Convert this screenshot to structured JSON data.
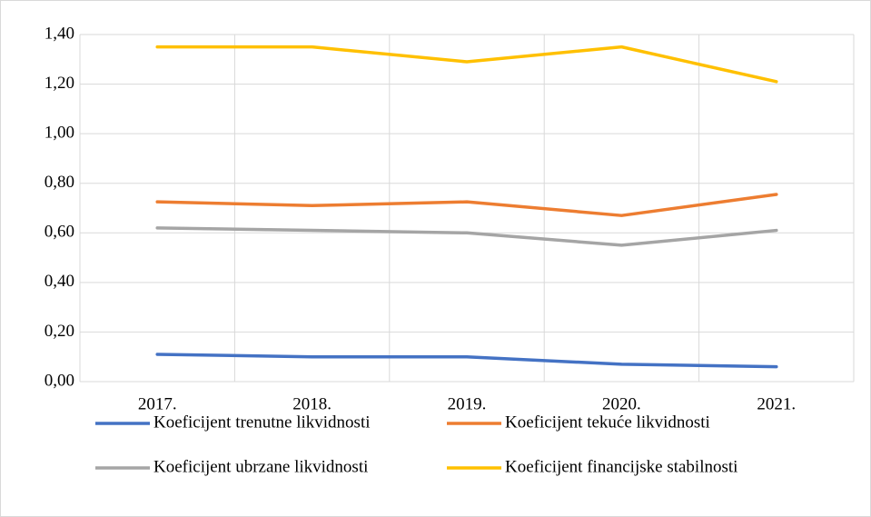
{
  "chart_data": {
    "type": "line",
    "categories": [
      "2017.",
      "2018.",
      "2019.",
      "2020.",
      "2021."
    ],
    "series": [
      {
        "name": "Koeficijent trenutne likvidnosti",
        "color": "#4472c4",
        "values": [
          0.11,
          0.1,
          0.1,
          0.07,
          0.06
        ]
      },
      {
        "name": "Koeficijent tekuće likvidnosti",
        "color": "#ed7d31",
        "values": [
          0.725,
          0.71,
          0.725,
          0.67,
          0.755
        ]
      },
      {
        "name": "Koeficijent ubrzane likvidnosti",
        "color": "#a5a5a5",
        "values": [
          0.62,
          0.61,
          0.6,
          0.55,
          0.61
        ]
      },
      {
        "name": "Koeficijent financijske stabilnosti",
        "color": "#ffc000",
        "values": [
          1.35,
          1.35,
          1.29,
          1.35,
          1.21
        ]
      }
    ],
    "ylim": [
      0,
      1.4
    ],
    "yticks": [
      {
        "value": 0,
        "label": "0,00"
      },
      {
        "value": 0.2,
        "label": "0,20"
      },
      {
        "value": 0.4,
        "label": "0,40"
      },
      {
        "value": 0.6,
        "label": "0,60"
      },
      {
        "value": 0.8,
        "label": "0,80"
      },
      {
        "value": 1.0,
        "label": "1,00"
      },
      {
        "value": 1.2,
        "label": "1,20"
      },
      {
        "value": 1.4,
        "label": "1,40"
      }
    ],
    "grid": true
  }
}
